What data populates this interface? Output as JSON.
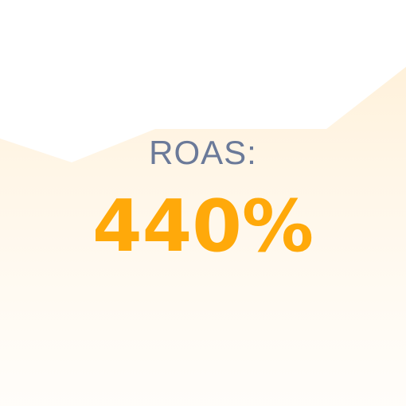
{
  "metric": {
    "label": "ROAS:",
    "value": "440%"
  },
  "colors": {
    "label_color": "#6b7a99",
    "value_color": "#ffa90a",
    "area_fill": "#ffe9c7"
  }
}
